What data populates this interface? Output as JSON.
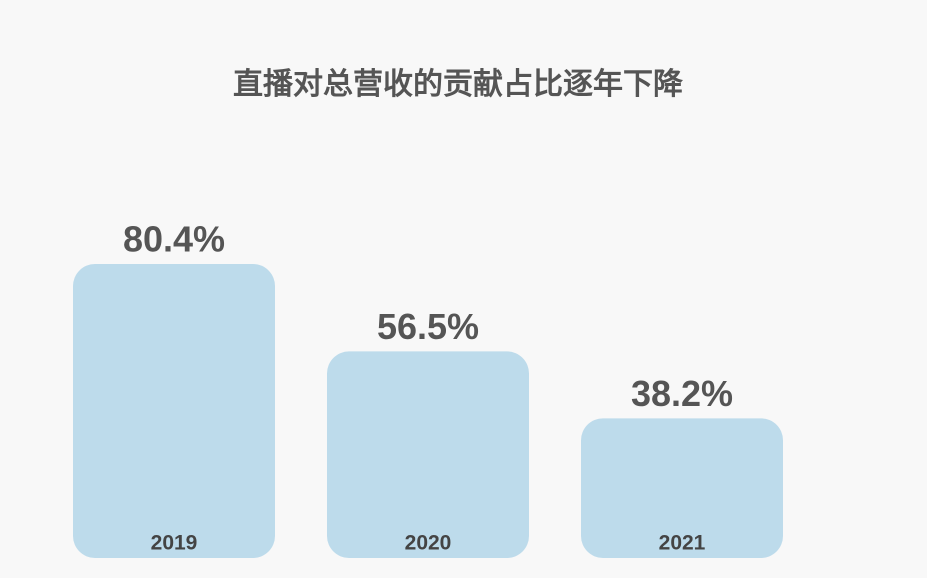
{
  "chart_data": {
    "type": "bar",
    "title": "直播对总营收的贡献占比逐年下降",
    "categories": [
      "2019",
      "2020",
      "2021"
    ],
    "values": [
      80.4,
      56.5,
      38.2
    ],
    "value_labels": [
      "80.4%",
      "56.5%",
      "38.2%"
    ],
    "color": "#bddbeb"
  }
}
